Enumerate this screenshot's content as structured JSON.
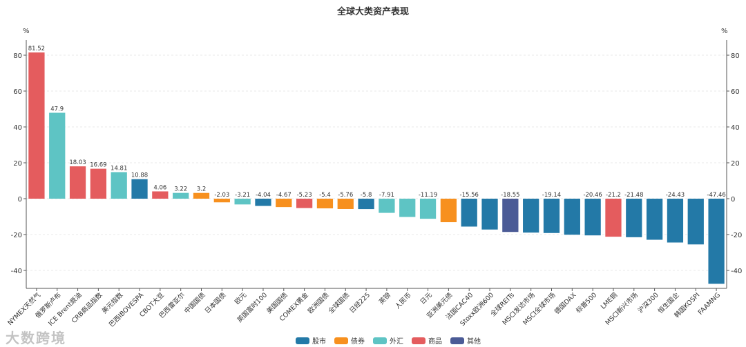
{
  "chart_data": {
    "type": "bar",
    "title": "全球大类资产表现",
    "ylabel_left": "%",
    "ylabel_right": "%",
    "ylim": [
      -50,
      88
    ],
    "yticks": [
      -40,
      -20,
      0,
      20,
      40,
      60,
      80
    ],
    "grid": true,
    "legend_position": "bottom",
    "categories": [
      "NYMEX天然气",
      "俄罗斯卢布",
      "ICE Brent原油",
      "CRB商品指数",
      "美元指数",
      "巴西IBOVESPA",
      "CBOT大豆",
      "巴西雷亚尔",
      "中国国债",
      "日本国债",
      "欧元",
      "英国富时100",
      "美国国债",
      "COMEX黄金",
      "欧洲国债",
      "全球国债",
      "日经225",
      "英镑",
      "人民币",
      "日元",
      "亚洲美元债",
      "法国CAC40",
      "Stoxx欧洲600",
      "全球REITs",
      "MSCI发达市场",
      "MSCI全球市场",
      "德国DAX",
      "标普500",
      "LME铜",
      "MSCI新兴市场",
      "沪深300",
      "恒生国企",
      "韩国KOSPI",
      "FAAMNG"
    ],
    "values": [
      81.52,
      47.9,
      18.03,
      16.69,
      14.81,
      10.88,
      4.06,
      3.22,
      3.2,
      -2.03,
      -3.21,
      -4.04,
      -4.67,
      -5.23,
      -5.4,
      -5.76,
      -5.8,
      -7.91,
      -10.2,
      -11.19,
      -13.1,
      -15.56,
      -17.2,
      -18.55,
      -18.9,
      -19.14,
      -20.1,
      -20.46,
      -21.2,
      -21.48,
      -22.9,
      -24.43,
      -25.5,
      -47.46
    ],
    "labels": [
      "81.52",
      "47.9",
      "18.03",
      "16.69",
      "14.81",
      "10.88",
      "4.06",
      "3.22",
      "3.2",
      "-2.03",
      "-3.21",
      "-4.04",
      "-4.67",
      "-5.23",
      "-5.4",
      "-5.76",
      "-5.8",
      "-7.91",
      "",
      "-11.19",
      "",
      "-15.56",
      "",
      "-18.55",
      "",
      "-19.14",
      "",
      "-20.46",
      "-21.2",
      "-21.48",
      "",
      "-24.43",
      "",
      "-47.46"
    ],
    "groups": [
      "商品",
      "外汇",
      "商品",
      "商品",
      "外汇",
      "股市",
      "商品",
      "外汇",
      "债券",
      "债券",
      "外汇",
      "股市",
      "债券",
      "商品",
      "债券",
      "债券",
      "股市",
      "外汇",
      "外汇",
      "外汇",
      "债券",
      "股市",
      "股市",
      "其他",
      "股市",
      "股市",
      "股市",
      "股市",
      "商品",
      "股市",
      "股市",
      "股市",
      "股市",
      "股市"
    ],
    "legend": [
      {
        "name": "股市",
        "color": "#2379a7"
      },
      {
        "name": "债券",
        "color": "#f7901e"
      },
      {
        "name": "外汇",
        "color": "#5ec4c4"
      },
      {
        "name": "商品",
        "color": "#e45c5e"
      },
      {
        "name": "其他",
        "color": "#4b5b96"
      }
    ]
  },
  "watermark": "大数跨境"
}
